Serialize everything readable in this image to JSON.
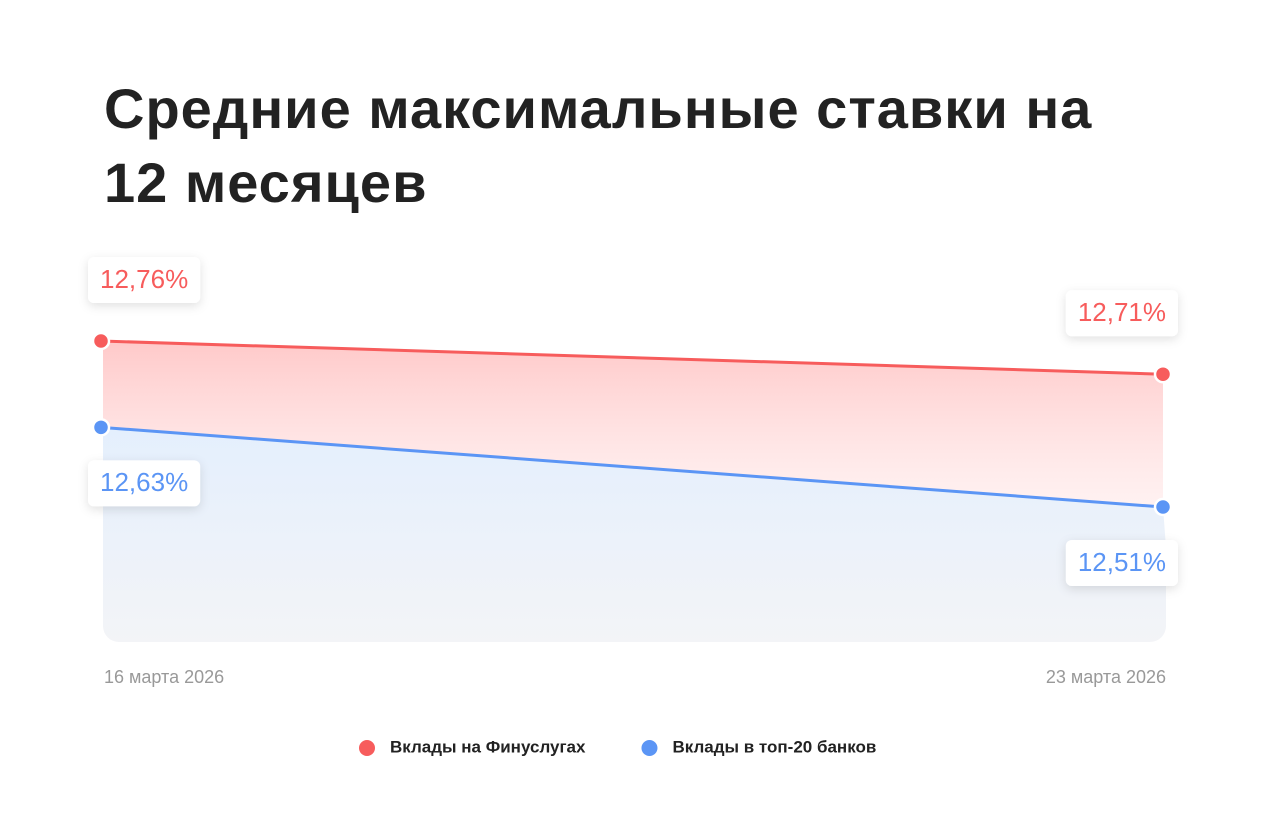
{
  "chart_data": {
    "type": "line",
    "title": "Средние максимальные ставки на 12 месяцев",
    "categories": [
      "16 марта 2026",
      "23 марта 2026"
    ],
    "series": [
      {
        "name": "Вклады на Финуслугах",
        "color": "#f75c5c",
        "values": [
          12.76,
          12.71
        ],
        "value_labels": [
          "12,76%",
          "12,71%"
        ]
      },
      {
        "name": "Вклады в топ-20 банков",
        "color": "#5b95f5",
        "values": [
          12.63,
          12.51
        ],
        "value_labels": [
          "12,63%",
          "12,51%"
        ]
      }
    ]
  }
}
